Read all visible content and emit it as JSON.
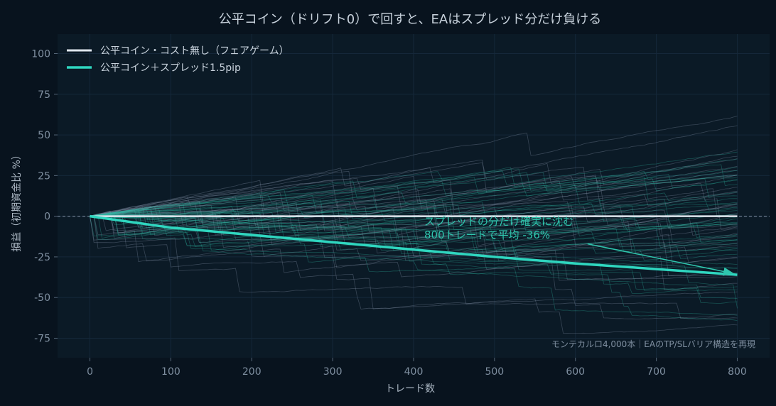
{
  "chart_data": {
    "type": "line",
    "title": "公平コイン（ドリフト0）で回すと、EAはスプレッド分だけ負ける",
    "xlabel": "トレード数",
    "ylabel": "損益（初期資金比 %）",
    "xlim": [
      -40,
      840
    ],
    "ylim": [
      -87,
      112
    ],
    "xticks": [
      0,
      100,
      200,
      300,
      400,
      500,
      600,
      700,
      800
    ],
    "yticks": [
      -75,
      -50,
      -25,
      0,
      25,
      50,
      75,
      100
    ],
    "grid": true,
    "legend_position": "top-left",
    "series": [
      {
        "name": "公平コイン・コスト無し（フェアゲーム）",
        "color": "#dfe6ee",
        "x": [
          0,
          100,
          200,
          300,
          400,
          500,
          600,
          700,
          800
        ],
        "values": [
          0,
          0,
          0,
          0,
          0,
          0,
          0,
          0,
          0
        ]
      },
      {
        "name": "公平コイン＋スプレッド1.5pip",
        "color": "#2fd6bf",
        "x": [
          0,
          100,
          200,
          300,
          400,
          500,
          600,
          700,
          800
        ],
        "values": [
          0,
          -7,
          -11.5,
          -16,
          -20.5,
          -25,
          -29,
          -32.5,
          -36
        ]
      }
    ],
    "reference_line": {
      "y": 0,
      "style": "dashed"
    },
    "annotation": {
      "lines": [
        "スプレッドの分だけ確実に沈む",
        "800トレードで平均 -36%"
      ],
      "arrow_from": [
        615,
        -17
      ],
      "arrow_to": [
        800,
        -36
      ]
    },
    "footnote": "モンテカルロ4,000本｜EAのTP/SLバリア構造を再現"
  }
}
